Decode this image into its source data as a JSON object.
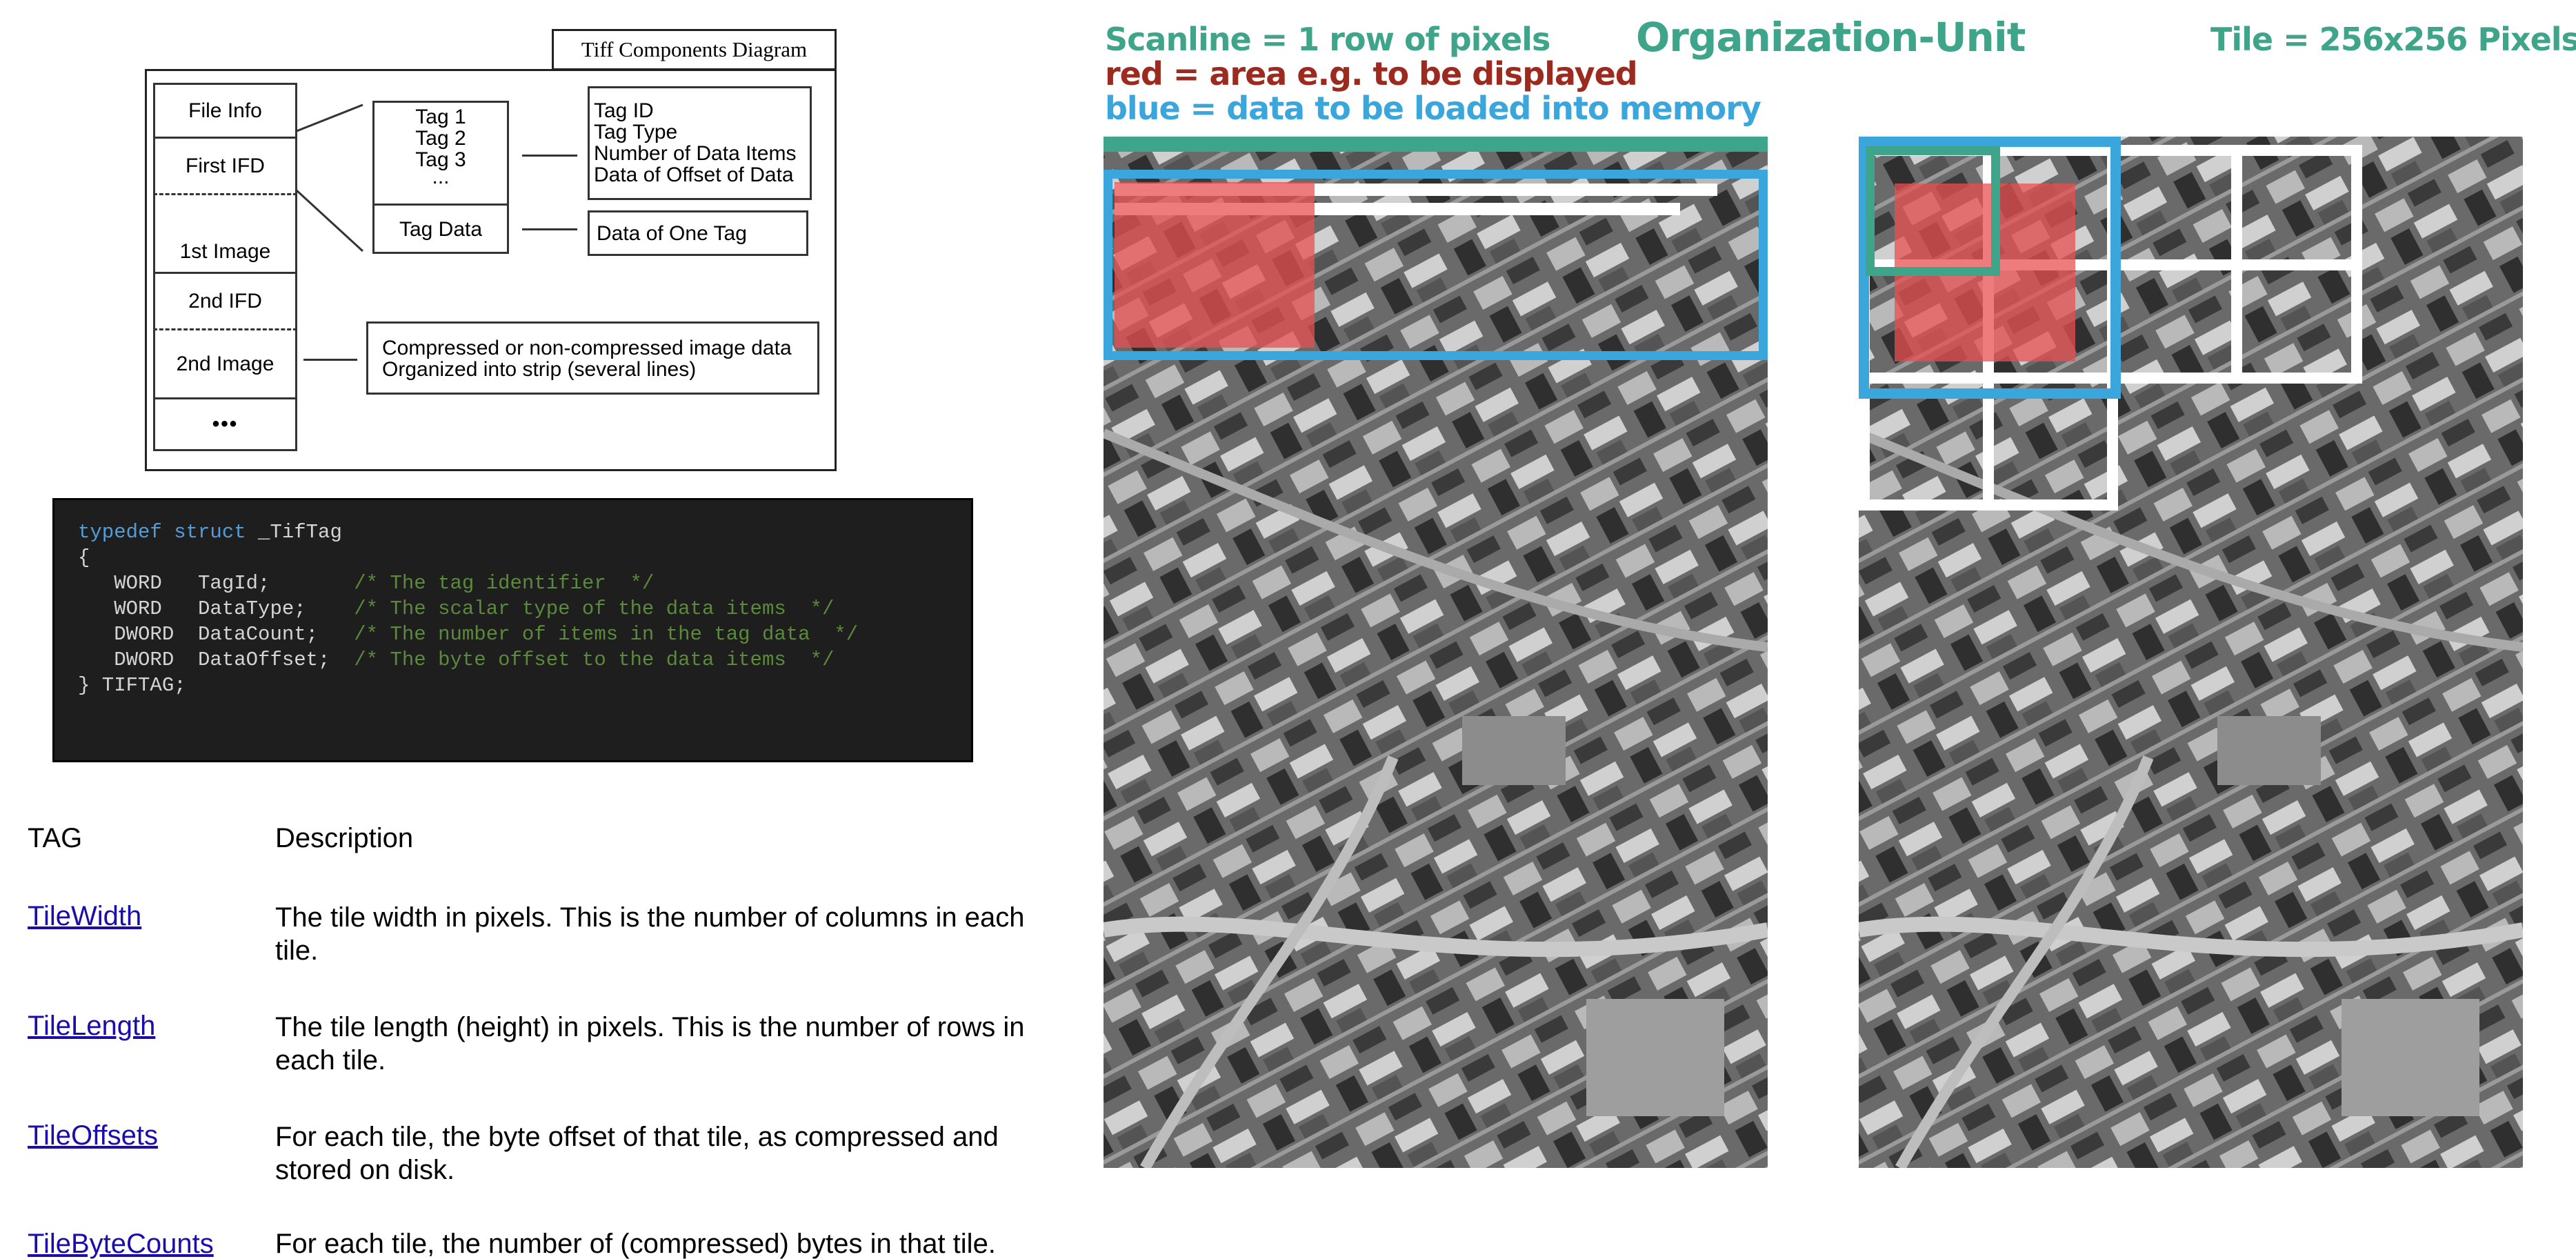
{
  "diagram": {
    "title": "Tiff Components Diagram",
    "left_stack": [
      "File Info",
      "First IFD",
      "1st Image",
      "2nd IFD",
      "2nd Image",
      "•••"
    ],
    "tag_list": [
      "Tag 1",
      "Tag 2",
      "Tag 3",
      "..."
    ],
    "tag_data": "Tag Data",
    "tag_fields": [
      "Tag ID",
      "Tag Type",
      "Number of Data Items",
      "Data of Offset of Data"
    ],
    "data_of_one_tag": "Data of One Tag",
    "strip_note": [
      "Compressed or non-compressed image data",
      "Organized into strip (several lines)"
    ]
  },
  "code": {
    "line1_kw": "typedef struct",
    "line1_rest": " _TifTag",
    "open": "{",
    "fields": [
      {
        "decl": "   WORD   TagId;       ",
        "comment": "/* The tag identifier  */"
      },
      {
        "decl": "   WORD   DataType;    ",
        "comment": "/* The scalar type of the data items  */"
      },
      {
        "decl": "   DWORD  DataCount;   ",
        "comment": "/* The number of items in the tag data  */"
      },
      {
        "decl": "   DWORD  DataOffset;  ",
        "comment": "/* The byte offset to the data items  */"
      }
    ],
    "close": "} TIFTAG;"
  },
  "table": {
    "headers": [
      "TAG",
      "Description"
    ],
    "rows": [
      {
        "tag": "TileWidth",
        "desc": "The tile width in pixels. This is the number of columns in each tile."
      },
      {
        "tag": "TileLength",
        "desc": "The tile length (height) in pixels. This is the number of rows in each tile."
      },
      {
        "tag": "TileOffsets",
        "desc": "For each tile, the byte offset of that tile, as compressed and stored on disk."
      },
      {
        "tag": "TileByteCounts",
        "desc": "For each tile, the number of (compressed) bytes in that tile."
      }
    ]
  },
  "legend": {
    "scanline": "Scanline = 1 row of pixels",
    "red": "red = area e.g. to be displayed",
    "blue": "blue = data to be loaded into memory"
  },
  "title": "Organization-Unit",
  "tile_label": "Tile = 256x256 Pixels",
  "colors": {
    "teal": "#3fa58a",
    "dark_red": "#9c2a1f",
    "blue": "#3aa6dc",
    "red_overlay": "#e85050"
  }
}
